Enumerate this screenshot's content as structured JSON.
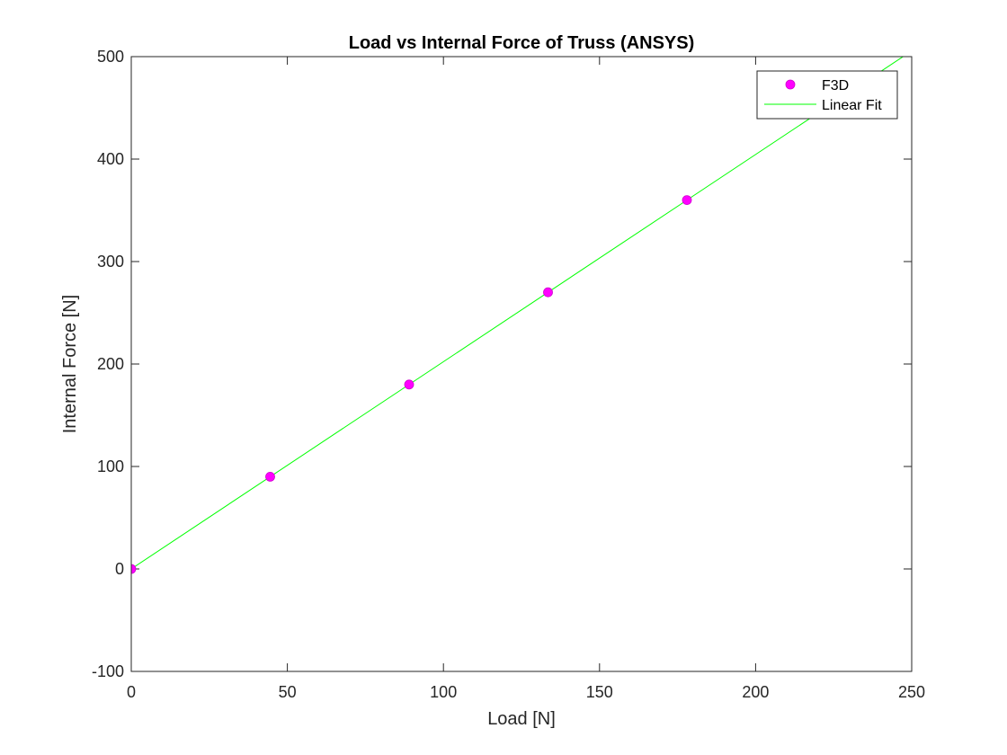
{
  "chart_data": {
    "type": "scatter",
    "title": "Load vs Internal Force of Truss (ANSYS)",
    "xlabel": "Load [N]",
    "ylabel": "Internal Force [N]",
    "xlim": [
      0,
      250
    ],
    "ylim": [
      -100,
      500
    ],
    "xticks": [
      0,
      50,
      100,
      150,
      200,
      250
    ],
    "yticks": [
      -100,
      0,
      100,
      200,
      300,
      400,
      500
    ],
    "xtick_labels": [
      "0",
      "50",
      "100",
      "150",
      "200",
      "250"
    ],
    "ytick_labels": [
      "-100",
      "0",
      "100",
      "200",
      "300",
      "400",
      "500"
    ],
    "grid": false,
    "legend_position": "top-right",
    "series": [
      {
        "name": "F3D",
        "kind": "scatter",
        "color": "#ff00ff",
        "x": [
          0,
          44.5,
          89,
          133.5,
          178
        ],
        "y": [
          0,
          90,
          180,
          270,
          360
        ]
      },
      {
        "name": "Linear Fit",
        "kind": "line",
        "color": "#00ff00",
        "x": [
          0,
          250
        ],
        "y": [
          0,
          505.6
        ]
      }
    ]
  }
}
